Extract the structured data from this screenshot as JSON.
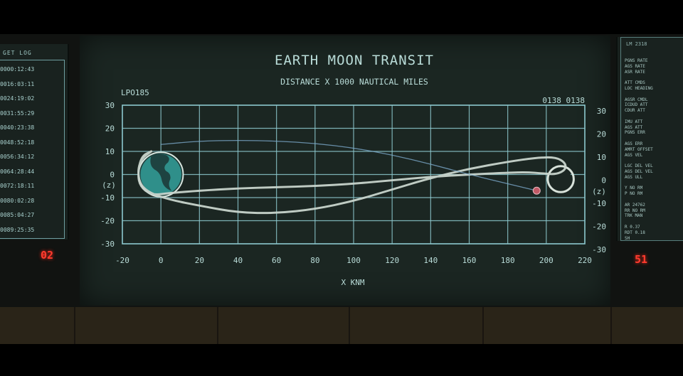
{
  "left_panel": {
    "title": "GET LOG",
    "entries": [
      "0000:12:43",
      "0016:03:11",
      "0024:19:02",
      "0031:55:29",
      "0040:23:38",
      "0048:52:18",
      "0056:34:12",
      "0064:28:44",
      "0072:18:11",
      "0080:02:28",
      "0085:04:27",
      "0089:25:35"
    ],
    "counter": "02"
  },
  "right_panel": {
    "header": "LM 2318",
    "lines": [
      "PGNS RATE",
      "AGS RATE",
      "ASR RATE",
      "",
      "ATT CMDS",
      "LOC HEADING",
      "",
      "AGSR CMDL",
      "ICDUD ATT",
      "CDUR ATT",
      "",
      "IMU ATT",
      "AGS ATT",
      "PGNS ERR",
      "",
      "AGS ERR",
      "AMRT OFFSET",
      "AGS VEL",
      "",
      "LGC DEL VEL",
      "AGS DEL VEL",
      "AGS ULL",
      "",
      "Y  NO RM",
      "P  NO RM",
      "",
      "AR 24762",
      "RR NO RM",
      "TRK MAN",
      "",
      "R  0.37",
      "RDT 0.18",
      "SH"
    ],
    "counter": "51"
  },
  "chart_data": {
    "type": "line",
    "title": "EARTH MOON TRANSIT",
    "subtitle": "DISTANCE X 1000 NAUTICAL MILES",
    "xlabel": "X KNM",
    "ylabel": "(z)",
    "top_left_label": "LPO185",
    "top_right_label": "0138 0138",
    "xlim": [
      -20,
      220
    ],
    "ylim": [
      -30,
      30
    ],
    "x_ticks": [
      -20,
      0,
      20,
      40,
      60,
      80,
      100,
      120,
      140,
      160,
      180,
      200,
      220
    ],
    "y_ticks_left": [
      30,
      20,
      10,
      0,
      -10,
      -20,
      -30
    ],
    "y_ticks_right": [
      30,
      20,
      10,
      0,
      -10,
      -20,
      -30
    ],
    "grid": true,
    "earth": {
      "x": 0,
      "y": 0,
      "radius": 11
    },
    "moon": {
      "x": 207.5,
      "y": -2,
      "radius": 6
    },
    "series": [
      {
        "kind": "transit-loop",
        "color": "#c8d4cc",
        "x": [
          -5,
          -10,
          -12,
          -11,
          -6,
          5,
          20,
          40,
          60,
          80,
          100,
          120,
          140,
          160,
          180,
          195,
          205,
          210,
          210,
          205,
          198,
          190,
          180,
          160,
          140,
          120,
          100,
          80,
          60,
          40,
          20,
          5,
          -5,
          -11,
          -12,
          -10,
          -5
        ],
        "y": [
          10,
          7,
          2,
          -4,
          -8,
          -11,
          -13.5,
          -16.5,
          -16.8,
          -15,
          -11.5,
          -6.5,
          -1.5,
          2.5,
          5.5,
          7.3,
          7.5,
          5,
          2,
          0,
          0.5,
          1,
          0.8,
          0,
          -1,
          -2.5,
          -4,
          -5,
          -5.5,
          -6,
          -7,
          -8,
          -9,
          -5,
          1,
          8,
          10
        ]
      },
      {
        "kind": "trajectory",
        "color": "#7aa7c9",
        "x": [
          0,
          20,
          40,
          60,
          80,
          100,
          120,
          140,
          160,
          180,
          195
        ],
        "y": [
          13,
          14.5,
          14.8,
          14.5,
          13.5,
          11.5,
          8.5,
          4.5,
          0,
          -4,
          -7
        ]
      }
    ],
    "spacecraft": {
      "x": 195,
      "y": -7,
      "color": "#c25a66"
    }
  },
  "colors": {
    "grid": "#8ec9cf",
    "screen_text": "#a9d2cf",
    "earth_ocean": "#2f8f8a",
    "earth_land": "#1d3b38",
    "counter": "#ff3b2e"
  }
}
